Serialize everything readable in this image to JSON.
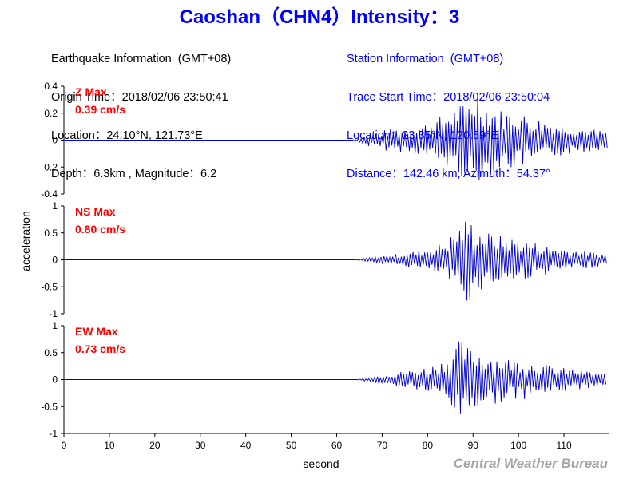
{
  "header": {
    "title": "Caoshan（CHN4）Intensity：3"
  },
  "earthquake_info": {
    "heading": "Earthquake Information  (GMT+08)",
    "origin_time": "Origin Time：2018/02/06 23:50:41",
    "location": "Location：24.10°N, 121.73°E",
    "depth_magnitude": "Depth：6.3km , Magnitude：6.2"
  },
  "station_info": {
    "heading": "Station Information  (GMT+08)",
    "trace_start": "Trace Start Time：2018/02/06 23:50:04",
    "location": "Location：23.35°N, 120.59°E",
    "distance_azimuth": "Distance：142.46 km, Azimuth：54.37°"
  },
  "footer": {
    "credit": "Central Weather Bureau"
  },
  "colors": {
    "title": "#0000ff",
    "trace": "#0000cc",
    "max_label": "#ff0000",
    "axis": "#000000",
    "credit": "#a6a6a6"
  },
  "chart_data": [
    {
      "type": "line",
      "component": "Z",
      "max_label": "Z Max",
      "max_value": "0.39 cm/s",
      "peak": 0.39,
      "ylabel": "acceleration",
      "xlabel": "",
      "xlim": [
        0,
        120
      ],
      "ylim": [
        -0.4,
        0.4
      ],
      "yticks": [
        -0.4,
        -0.2,
        0,
        0.2,
        0.4
      ],
      "ytick_labels": [
        "-0.4",
        "-0.2",
        "0",
        "0.2",
        "0.4"
      ],
      "onset": 63.5,
      "end": 119.5,
      "series": [
        {
          "x": [
            0,
            63.5,
            65,
            67,
            69,
            71,
            73,
            75,
            77,
            79,
            81,
            83,
            85,
            86,
            87,
            88,
            89,
            90,
            91,
            92,
            93,
            95,
            97,
            99,
            101,
            103,
            105,
            107,
            109,
            111,
            113,
            115,
            117,
            119.5
          ],
          "y": [
            0,
            0,
            0.02,
            -0.05,
            0.06,
            -0.08,
            0.09,
            -0.09,
            0.1,
            -0.12,
            0.15,
            -0.18,
            0.22,
            -0.25,
            0.28,
            -0.26,
            0.32,
            -0.35,
            0.39,
            -0.3,
            0.27,
            -0.24,
            0.22,
            -0.22,
            0.2,
            -0.18,
            0.16,
            -0.14,
            0.12,
            -0.11,
            0.1,
            -0.09,
            0.08,
            0.06
          ]
        }
      ]
    },
    {
      "type": "line",
      "component": "NS",
      "max_label": "NS Max",
      "max_value": "0.80 cm/s",
      "peak": 0.8,
      "ylabel": "",
      "xlabel": "",
      "xlim": [
        0,
        120
      ],
      "ylim": [
        -1,
        1
      ],
      "yticks": [
        -1,
        -0.5,
        0,
        0.5,
        1
      ],
      "ytick_labels": [
        "-1",
        "-0.5",
        "0",
        "0.5",
        "1"
      ],
      "onset": 64,
      "end": 119.5,
      "series": [
        {
          "x": [
            0,
            64,
            66,
            68,
            70,
            72,
            74,
            76,
            78,
            80,
            82,
            84,
            85,
            86,
            87,
            88,
            89,
            90,
            91,
            92,
            94,
            96,
            98,
            100,
            102,
            104,
            106,
            108,
            110,
            112,
            114,
            116,
            118,
            119.5
          ],
          "y": [
            0,
            0,
            0.03,
            -0.05,
            0.08,
            -0.1,
            0.12,
            -0.15,
            0.18,
            -0.22,
            0.28,
            -0.35,
            0.45,
            -0.55,
            0.65,
            -0.75,
            0.8,
            -0.7,
            0.62,
            -0.55,
            0.5,
            -0.45,
            0.42,
            -0.4,
            0.35,
            -0.32,
            0.28,
            -0.25,
            0.22,
            -0.2,
            0.18,
            -0.15,
            0.12,
            -0.1
          ]
        }
      ]
    },
    {
      "type": "line",
      "component": "EW",
      "max_label": "EW Max",
      "max_value": "0.73 cm/s",
      "peak": 0.73,
      "ylabel": "",
      "xlabel": "second",
      "xlim": [
        0,
        120
      ],
      "ylim": [
        -1,
        1
      ],
      "yticks": [
        -1,
        -0.5,
        0,
        0.5,
        1
      ],
      "ytick_labels": [
        "-1",
        "-0.5",
        "0",
        "0.5",
        "1"
      ],
      "xticks": [
        0,
        10,
        20,
        30,
        40,
        50,
        60,
        70,
        80,
        90,
        100,
        110
      ],
      "xtick_labels": [
        "0",
        "10",
        "20",
        "30",
        "40",
        "50",
        "60",
        "70",
        "80",
        "90",
        "100",
        "110"
      ],
      "onset": 64.5,
      "end": 119.5,
      "series": [
        {
          "x": [
            0,
            64.5,
            66,
            68,
            70,
            72,
            74,
            76,
            78,
            80,
            82,
            84,
            85,
            86,
            87,
            88,
            89,
            90,
            91,
            92,
            94,
            96,
            98,
            100,
            102,
            104,
            106,
            108,
            110,
            112,
            114,
            116,
            118,
            119.5
          ],
          "y": [
            0,
            0,
            0.03,
            -0.06,
            0.1,
            -0.12,
            0.15,
            -0.18,
            0.2,
            -0.25,
            0.3,
            -0.4,
            0.5,
            -0.65,
            0.73,
            -0.7,
            0.6,
            -0.55,
            0.58,
            -0.5,
            0.48,
            -0.42,
            0.4,
            -0.38,
            0.35,
            -0.3,
            0.28,
            -0.25,
            0.22,
            -0.2,
            0.18,
            -0.15,
            0.12,
            0.1
          ]
        }
      ]
    }
  ]
}
